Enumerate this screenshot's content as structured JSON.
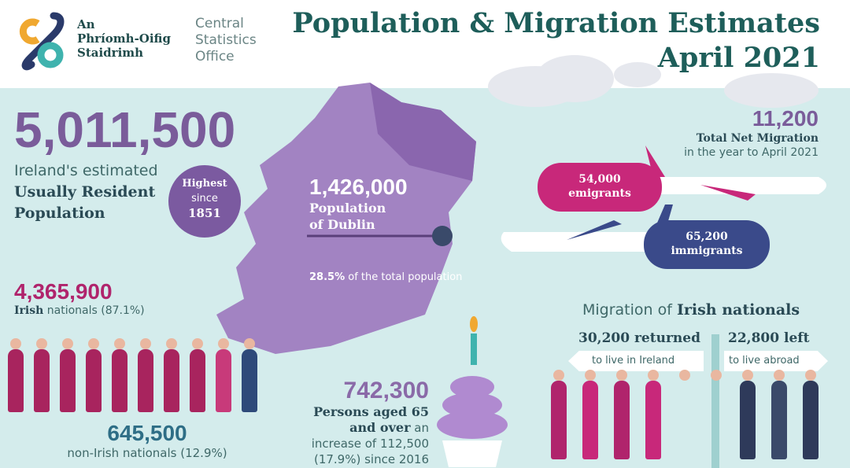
{
  "logo": {
    "irish_name": [
      "An",
      "Phríomh-Oifig",
      "Staidrimh"
    ],
    "english_name": [
      "Central",
      "Statistics",
      "Office"
    ]
  },
  "title": {
    "line1": "Population & Migration Estimates",
    "line2": "April 2021"
  },
  "population": {
    "value": "5,011,500",
    "desc1": "Ireland's estimated",
    "desc2": "Usually Resident",
    "desc3": "Population"
  },
  "badge": {
    "line1": "Highest",
    "line2": "since",
    "line3": "1851"
  },
  "dublin": {
    "value": "1,426,000",
    "label1": "Population",
    "label2": "of Dublin",
    "pct": "28.5%",
    "pct_desc": "of the total population"
  },
  "irish": {
    "value": "4,365,900",
    "label": "Irish",
    "desc": "nationals (87.1%)"
  },
  "non_irish": {
    "value": "645,500",
    "desc": "non-Irish nationals (12.9%)"
  },
  "elderly": {
    "value": "742,300",
    "bold": "Persons aged 65 and over",
    "desc": "an increase of 112,500 (17.9%) since 2016"
  },
  "net_migration": {
    "value": "11,200",
    "label": "Total Net Migration",
    "desc": "in the year to April 2021"
  },
  "emigrants": {
    "value": "54,000",
    "label": "emigrants"
  },
  "immigrants": {
    "value": "65,200",
    "label": "immigrants"
  },
  "irish_migration": {
    "title_pre": "Migration of",
    "title_bold": "Irish nationals",
    "returned": "30,200 returned",
    "returned_desc": "to live in Ireland",
    "left": "22,800 left",
    "left_desc": "to live abroad"
  },
  "colors": {
    "teal": "#1e5e5a",
    "purple": "#7a5c9a",
    "magenta": "#c8287a",
    "navy": "#3a4a8a",
    "background": "#d4ecec"
  }
}
